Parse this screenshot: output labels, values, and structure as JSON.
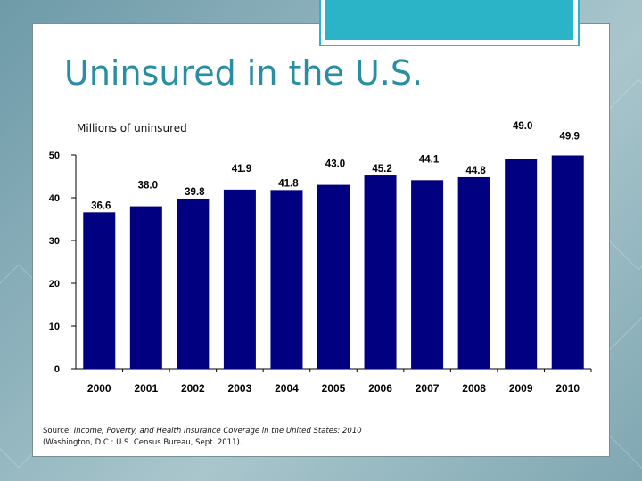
{
  "slide": {
    "title": "Uninsured in the U.S.",
    "subtitle": "Millions of uninsured",
    "source_prefix": "Source: ",
    "source_title": "Income, Poverty, and Health Insurance Coverage in the United States: 2010",
    "source_detail": "(Washington, D.C.: U.S. Census Bureau, Sept. 2011)."
  },
  "colors": {
    "bar": "#000080",
    "title": "#2a8ea3",
    "accent": "#2bb3c8"
  },
  "chart_data": {
    "type": "bar",
    "title": "",
    "ylabel": "Millions of uninsured",
    "xlabel": "",
    "categories": [
      "2000",
      "2001",
      "2002",
      "2003",
      "2004",
      "2005",
      "2006",
      "2007",
      "2008",
      "2009",
      "2010"
    ],
    "values": [
      36.6,
      38.0,
      39.8,
      41.9,
      41.8,
      43.0,
      45.2,
      44.1,
      44.8,
      49.0,
      49.9
    ],
    "value_labels": [
      "36.6",
      "38.0",
      "39.8",
      "41.9",
      "41.8",
      "43.0",
      "45.2",
      "44.1",
      "44.8",
      "49.0",
      "49.9"
    ],
    "yticks": [
      0,
      10,
      20,
      30,
      40,
      50
    ],
    "ylim": [
      0,
      50
    ],
    "grid": false
  }
}
